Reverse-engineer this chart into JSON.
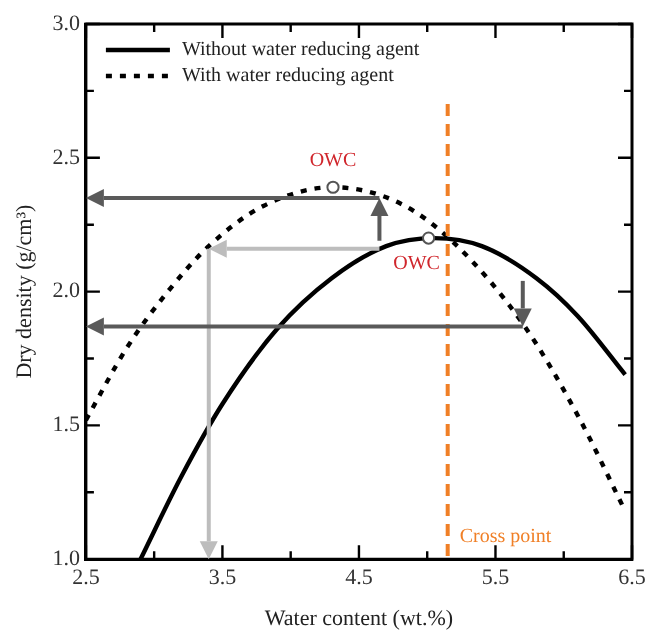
{
  "chart_data": {
    "type": "line",
    "xlabel": "Water content (wt.%)",
    "ylabel": "Dry density (g/cm³)",
    "series": [
      {
        "name": "Without water reducing agent",
        "color": "#000000",
        "line_style": "solid",
        "x": [
          2.9,
          3.2,
          3.5,
          3.9,
          4.3,
          4.7,
          5.05,
          5.4,
          5.8,
          6.1,
          6.45
        ],
        "values": [
          1.0,
          1.31,
          1.58,
          1.86,
          2.05,
          2.17,
          2.2,
          2.17,
          2.05,
          1.91,
          1.69
        ]
      },
      {
        "name": "With water reducing agent",
        "color": "#000000",
        "line_style": "dotted",
        "x": [
          2.5,
          2.8,
          3.1,
          3.4,
          3.8,
          4.31,
          4.8,
          5.2,
          5.7,
          6.1,
          6.45
        ],
        "values": [
          1.52,
          1.79,
          2.0,
          2.17,
          2.32,
          2.39,
          2.33,
          2.18,
          1.88,
          1.54,
          1.18
        ]
      }
    ],
    "marker": "none",
    "legend": "top left",
    "grid": false,
    "xlim": [
      2.5,
      6.5
    ],
    "xticks": [
      2.5,
      {
        "value": 3,
        "label": null
      },
      3.5,
      {
        "value": 4,
        "label": null
      },
      4.5,
      {
        "value": 5,
        "label": null
      },
      5.5,
      {
        "value": 6,
        "label": null
      },
      6.5
    ],
    "ylim": [
      1,
      3
    ],
    "yticks": [
      {
        "value": 1,
        "label": "1.0"
      },
      {
        "value": 1.25,
        "label": null
      },
      {
        "value": 1.5,
        "label": "1.5"
      },
      {
        "value": 1.75,
        "label": null
      },
      {
        "value": 2,
        "label": "2.0"
      },
      {
        "value": 2.25,
        "label": null
      },
      {
        "value": 2.5,
        "label": "2.5"
      },
      {
        "value": 2.75,
        "label": null
      },
      {
        "value": 3,
        "label": "3.0"
      }
    ],
    "ref_lines": [
      {
        "axis": "x",
        "value": 5.15,
        "label": "Cross point",
        "color": "#f07f26",
        "line_style": "dashed"
      }
    ],
    "annotations": [
      {
        "text": "OWC",
        "x": 4.31,
        "y": 2.39
      },
      {
        "text": "OWC",
        "x": 5.01,
        "y": 2.2
      }
    ]
  }
}
